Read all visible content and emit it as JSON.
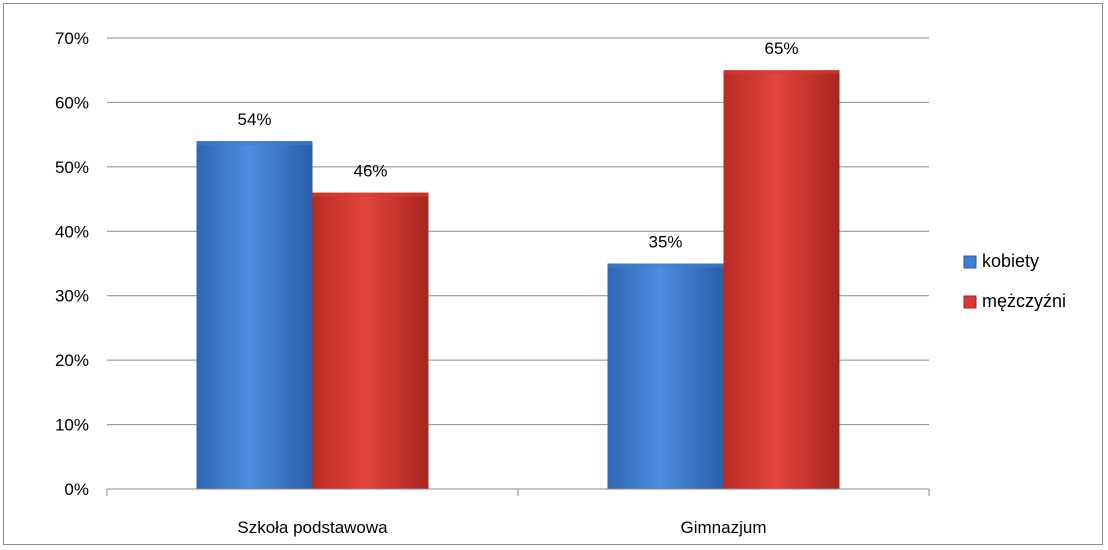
{
  "chart_data": {
    "type": "bar",
    "title": "",
    "xlabel": "",
    "ylabel": "",
    "categories": [
      "Szkoła podstawowa",
      "Gimnazjum"
    ],
    "series": [
      {
        "name": "kobiety",
        "values": [
          54,
          35
        ],
        "color": "#3f7fcf",
        "value_labels": [
          "54%",
          "35%"
        ]
      },
      {
        "name": "mężczyźni",
        "values": [
          46,
          65
        ],
        "color": "#d93a32",
        "value_labels": [
          "46%",
          "65%"
        ]
      }
    ],
    "ylim": [
      0,
      70
    ],
    "yticks": [
      0,
      10,
      20,
      30,
      40,
      50,
      60,
      70
    ],
    "ytick_labels": [
      "0%",
      "10%",
      "20%",
      "30%",
      "40%",
      "50%",
      "60%",
      "70%"
    ],
    "grid": true,
    "legend_position": "right"
  }
}
